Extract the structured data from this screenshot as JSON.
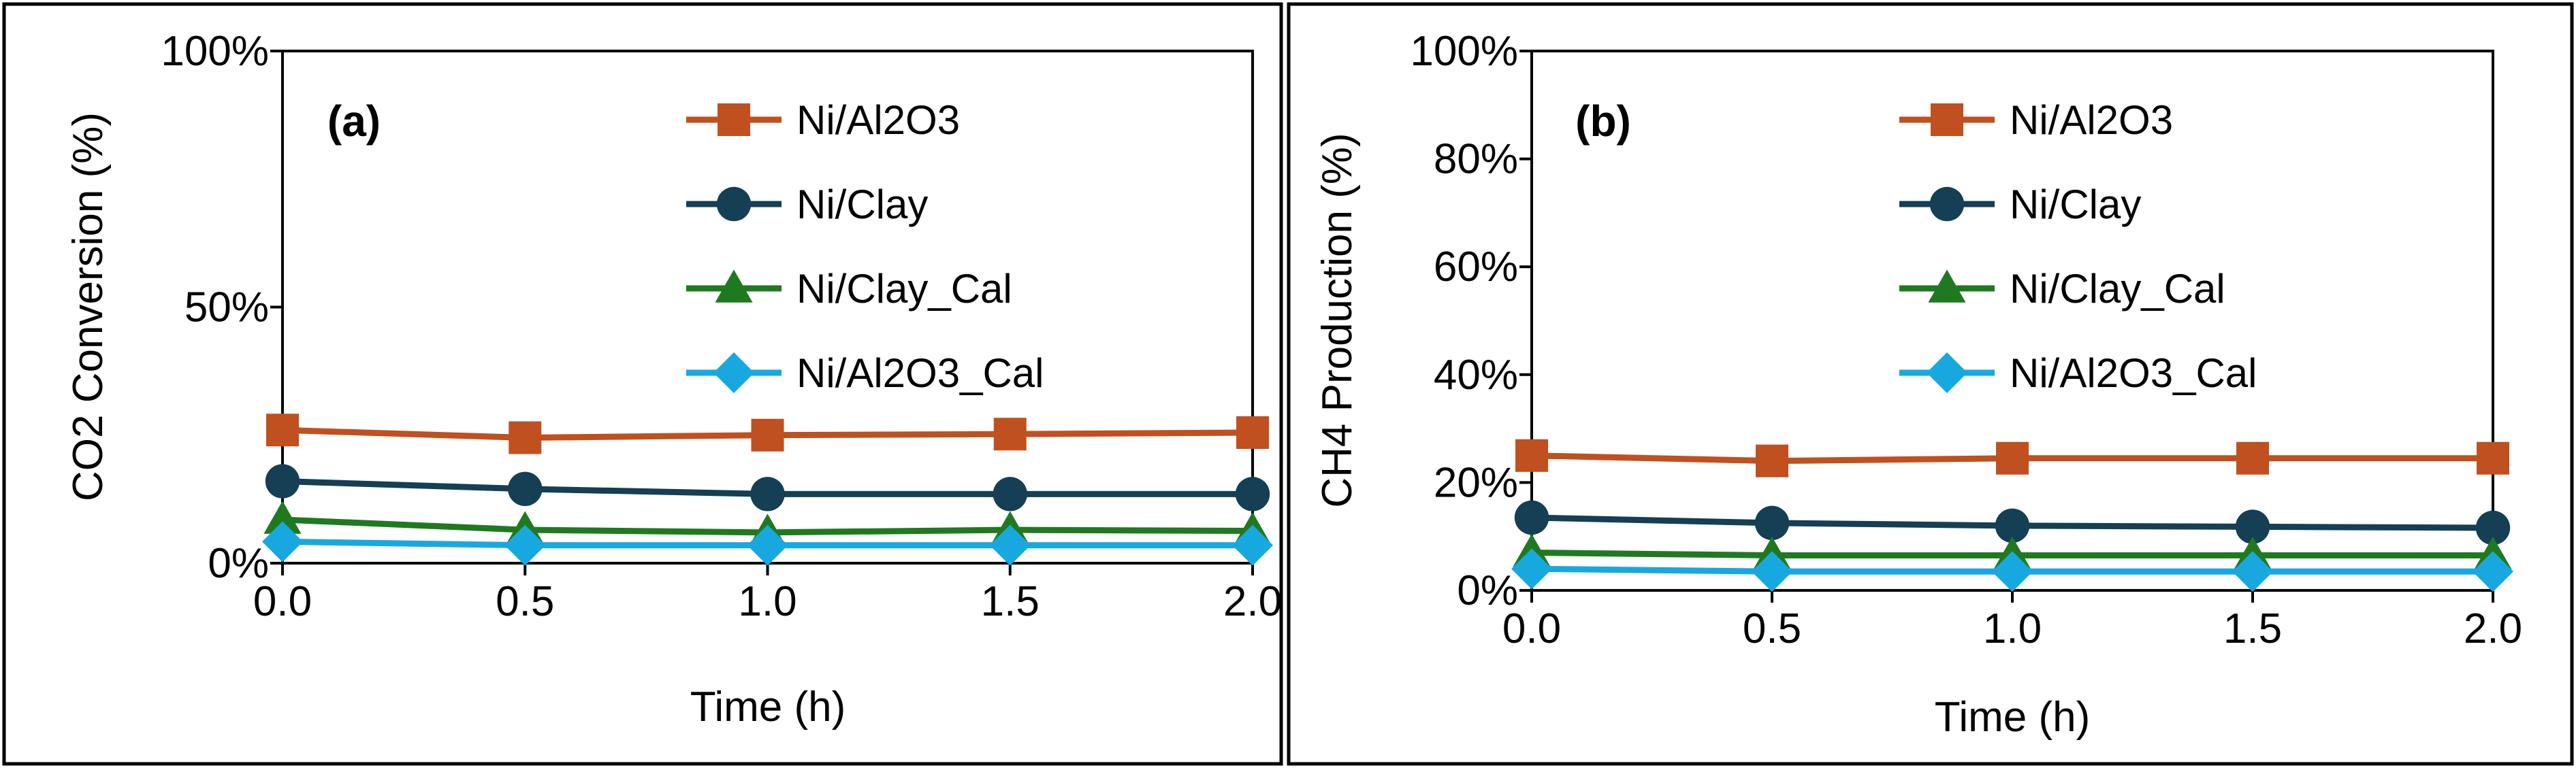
{
  "chart_data": [
    {
      "type": "line",
      "panel_label": "(a)",
      "xlabel": "Time (h)",
      "ylabel": "CO2 Conversion (%)",
      "xlim": [
        0,
        2
      ],
      "ylim": [
        0,
        100
      ],
      "x_ticks": [
        "0.0",
        "0.5",
        "1.0",
        "1.5",
        "2.0"
      ],
      "y_ticks": [
        "0%",
        "50%",
        "100%"
      ],
      "x": [
        0,
        0.5,
        1.0,
        1.5,
        2.0
      ],
      "grid": false,
      "legend_position": "top-right",
      "series": [
        {
          "name": "Ni/Al2O3",
          "color": "#c0501f",
          "marker": "square",
          "values": [
            26,
            24.5,
            25,
            25.2,
            25.5
          ]
        },
        {
          "name": "Ni/Clay",
          "color": "#143f55",
          "marker": "circle",
          "values": [
            16,
            14.5,
            13.5,
            13.5,
            13.5
          ]
        },
        {
          "name": "Ni/Clay_Cal",
          "color": "#1f7a1f",
          "marker": "triangle",
          "values": [
            8.5,
            6.5,
            6,
            6.5,
            6.3
          ]
        },
        {
          "name": "Ni/Al2O3_Cal",
          "color": "#18a8e0",
          "marker": "diamond",
          "values": [
            4.2,
            3.5,
            3.5,
            3.5,
            3.5
          ]
        }
      ]
    },
    {
      "type": "line",
      "panel_label": "(b)",
      "xlabel": "Time (h)",
      "ylabel": "CH4  Production (%)",
      "xlim": [
        0,
        2
      ],
      "ylim": [
        0,
        100
      ],
      "x_ticks": [
        "0.0",
        "0.5",
        "1.0",
        "1.5",
        "2.0"
      ],
      "y_ticks": [
        "0%",
        "20%",
        "40%",
        "60%",
        "80%",
        "100%"
      ],
      "x": [
        0,
        0.5,
        1.0,
        1.5,
        2.0
      ],
      "grid": false,
      "legend_position": "top-right",
      "series": [
        {
          "name": "Ni/Al2O3",
          "color": "#c0501f",
          "marker": "square",
          "values": [
            25,
            24,
            24.5,
            24.5,
            24.5
          ]
        },
        {
          "name": "Ni/Clay",
          "color": "#143f55",
          "marker": "circle",
          "values": [
            13.5,
            12.5,
            12,
            11.8,
            11.6
          ]
        },
        {
          "name": "Ni/Clay_Cal",
          "color": "#1f7a1f",
          "marker": "triangle",
          "values": [
            7,
            6.5,
            6.5,
            6.5,
            6.5
          ]
        },
        {
          "name": "Ni/Al2O3_Cal",
          "color": "#18a8e0",
          "marker": "diamond",
          "values": [
            4,
            3.5,
            3.5,
            3.5,
            3.5
          ]
        }
      ]
    }
  ]
}
